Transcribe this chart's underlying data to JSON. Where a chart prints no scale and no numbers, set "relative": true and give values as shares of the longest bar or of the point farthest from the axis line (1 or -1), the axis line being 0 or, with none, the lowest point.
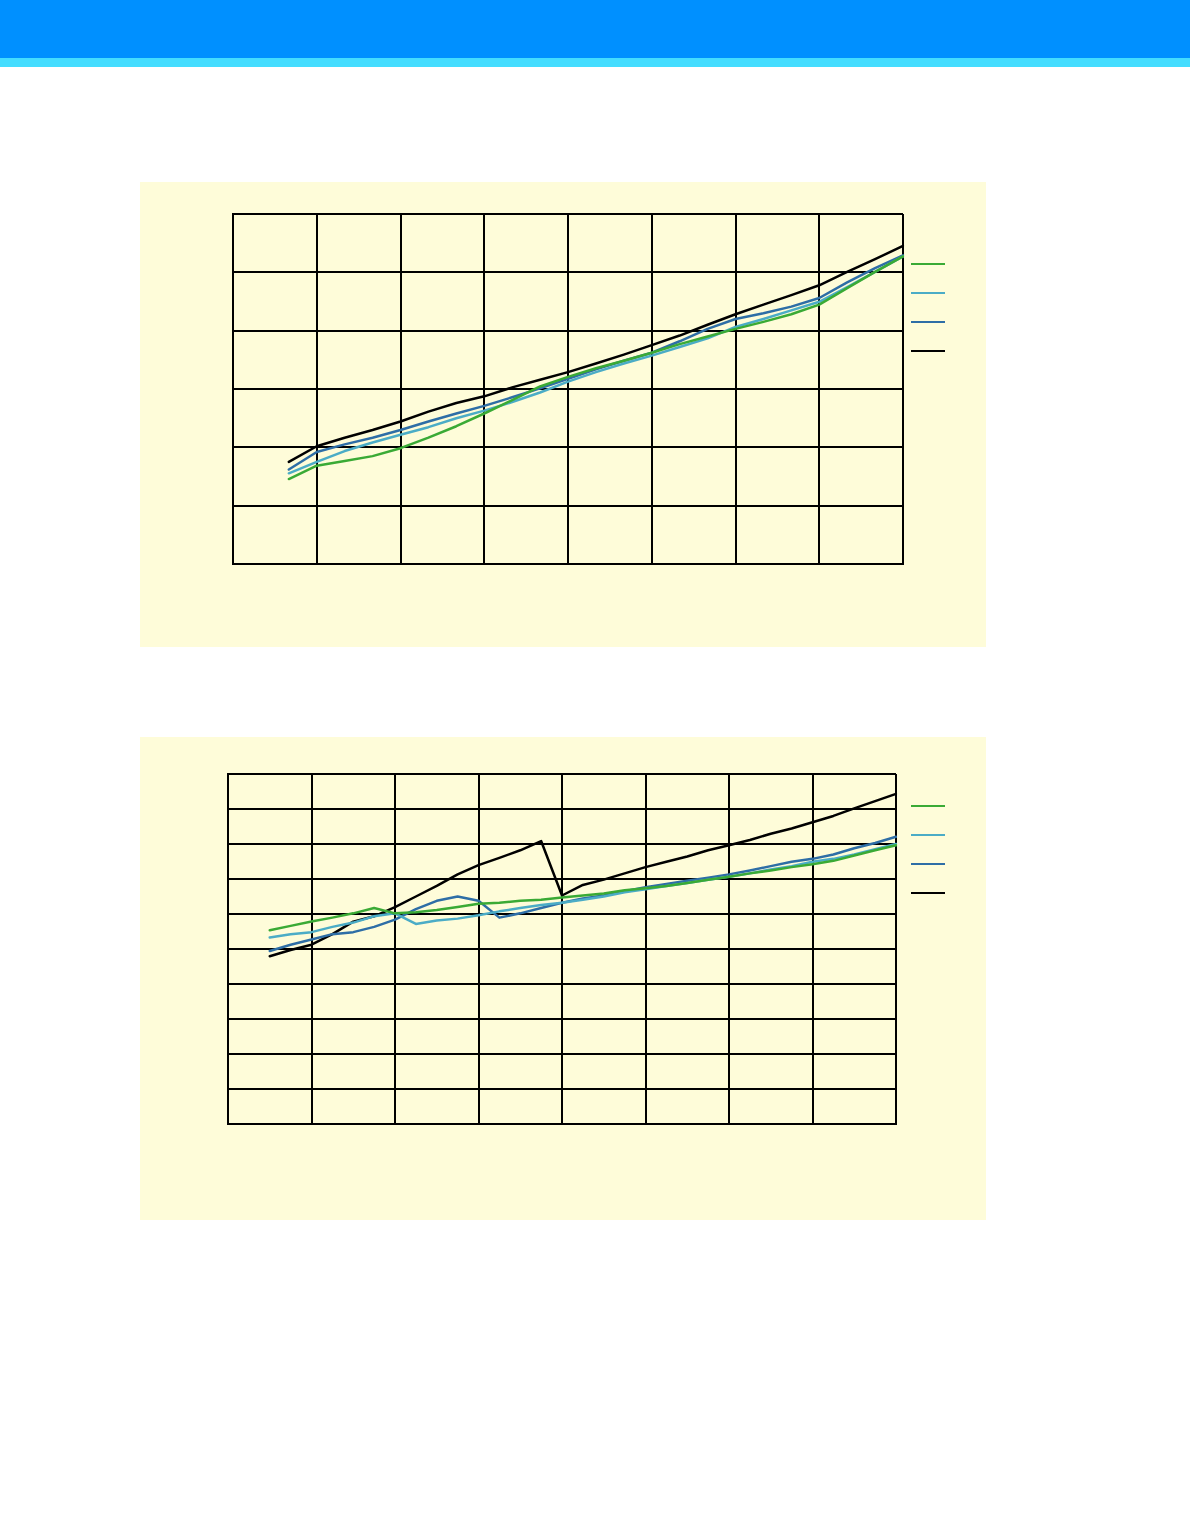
{
  "chart_data": [
    {
      "type": "line",
      "relative": true,
      "grid": true,
      "marker": "none",
      "line_style": "solid",
      "categories": [
        null,
        null,
        null,
        null,
        null,
        null,
        null,
        null,
        null,
        null,
        null,
        null,
        null,
        null,
        null,
        null,
        null,
        null,
        null,
        null,
        null,
        null,
        null,
        null,
        null
      ],
      "series": [
        {
          "color": "#3aaa35",
          "values": [
            null,
            null,
            0.267,
            0.309,
            0.324,
            0.339,
            0.364,
            0.397,
            0.433,
            0.473,
            0.515,
            0.558,
            0.588,
            0.615,
            0.639,
            0.664,
            0.691,
            0.715,
            0.739,
            0.761,
            0.785,
            0.815,
            0.867,
            0.918,
            0.967
          ]
        },
        {
          "color": "#4bacc6",
          "values": [
            null,
            null,
            0.285,
            0.321,
            0.355,
            0.382,
            0.406,
            0.43,
            0.458,
            0.482,
            0.509,
            0.539,
            0.573,
            0.603,
            0.63,
            0.655,
            0.682,
            0.709,
            0.745,
            0.77,
            0.797,
            0.824,
            0.87,
            0.918,
            0.967
          ]
        },
        {
          "color": "#2e6ea6",
          "values": [
            null,
            null,
            0.297,
            0.352,
            0.376,
            0.397,
            0.421,
            0.448,
            0.473,
            0.497,
            0.524,
            0.552,
            0.582,
            0.612,
            0.639,
            0.664,
            0.7,
            0.739,
            0.77,
            0.788,
            0.809,
            0.836,
            0.885,
            0.93,
            0.97
          ]
        },
        {
          "color": "#000000",
          "values": [
            null,
            null,
            0.321,
            0.37,
            0.397,
            0.421,
            0.448,
            0.479,
            0.506,
            0.527,
            0.555,
            0.579,
            0.603,
            0.63,
            0.658,
            0.688,
            0.718,
            0.752,
            0.785,
            0.815,
            0.845,
            0.876,
            0.918,
            0.958,
            1
          ]
        }
      ]
    },
    {
      "type": "line",
      "relative": true,
      "grid": true,
      "marker": "none",
      "line_style": "solid",
      "categories": [
        null,
        null,
        null,
        null,
        null,
        null,
        null,
        null,
        null,
        null,
        null,
        null,
        null,
        null,
        null,
        null,
        null,
        null,
        null,
        null,
        null,
        null,
        null,
        null,
        null,
        null,
        null,
        null,
        null,
        null,
        null,
        null,
        null
      ],
      "series": [
        {
          "color": "#3aaa35",
          "values": [
            null,
            null,
            0.587,
            0.6,
            0.613,
            0.625,
            0.638,
            0.654,
            0.638,
            0.641,
            0.648,
            0.657,
            0.667,
            0.67,
            0.676,
            0.679,
            0.686,
            0.692,
            0.698,
            0.708,
            0.714,
            0.721,
            0.73,
            0.74,
            0.749,
            0.759,
            0.768,
            0.778,
            0.787,
            0.797,
            0.813,
            0.829,
            0.844
          ]
        },
        {
          "color": "#4bacc6",
          "values": [
            null,
            null,
            0.565,
            0.575,
            0.581,
            0.597,
            0.61,
            0.629,
            0.638,
            0.606,
            0.616,
            0.622,
            0.632,
            0.644,
            0.654,
            0.663,
            0.67,
            0.679,
            0.689,
            0.702,
            0.711,
            0.721,
            0.73,
            0.74,
            0.749,
            0.759,
            0.771,
            0.781,
            0.794,
            0.803,
            0.816,
            0.832,
            0.848
          ]
        },
        {
          "color": "#2e6ea6",
          "values": [
            null,
            null,
            0.524,
            0.543,
            0.559,
            0.575,
            0.581,
            0.597,
            0.619,
            0.651,
            0.676,
            0.689,
            0.676,
            0.625,
            0.638,
            0.654,
            0.67,
            0.683,
            0.692,
            0.705,
            0.717,
            0.727,
            0.737,
            0.746,
            0.756,
            0.768,
            0.781,
            0.794,
            0.803,
            0.816,
            0.835,
            0.851,
            0.87
          ]
        },
        {
          "color": "#000000",
          "values": [
            null,
            null,
            0.508,
            0.527,
            0.543,
            0.575,
            0.613,
            0.629,
            0.657,
            0.689,
            0.721,
            0.756,
            0.784,
            0.806,
            0.829,
            0.857,
            0.692,
            0.724,
            0.74,
            0.759,
            0.778,
            0.794,
            0.81,
            0.829,
            0.844,
            0.86,
            0.879,
            0.895,
            0.914,
            0.933,
            0.956,
            0.978,
            1
          ]
        }
      ]
    }
  ]
}
